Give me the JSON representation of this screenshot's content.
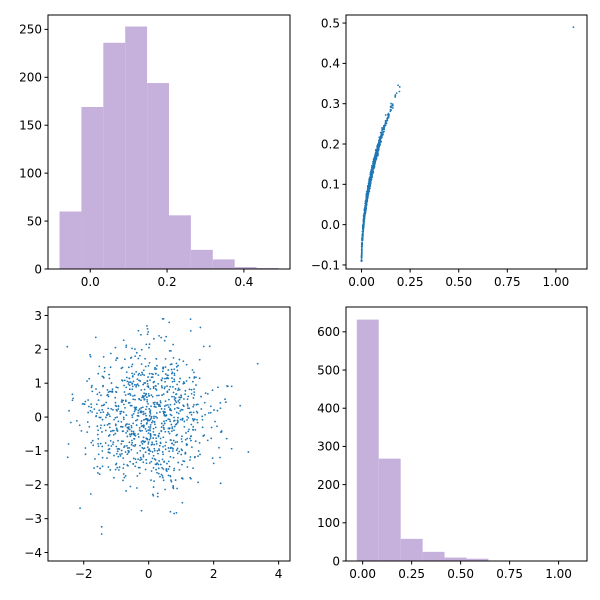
{
  "figure": {
    "background": "#ffffff"
  },
  "chart_data": [
    {
      "type": "bar",
      "subtype": "histogram",
      "panel": "top-left",
      "color": "#c6b0dc",
      "bin_edges": [
        -0.08,
        -0.023,
        0.034,
        0.091,
        0.148,
        0.205,
        0.262,
        0.319,
        0.376,
        0.433,
        0.49
      ],
      "values": [
        60,
        169,
        236,
        253,
        194,
        56,
        20,
        10,
        2,
        1
      ],
      "xlim": [
        -0.11,
        0.52
      ],
      "ylim": [
        0,
        265
      ],
      "x_ticks": [
        0.0,
        0.2,
        0.4
      ],
      "x_tick_labels": [
        "0.0",
        "0.2",
        "0.4"
      ],
      "y_ticks": [
        0,
        50,
        100,
        150,
        200,
        250
      ],
      "y_tick_labels": [
        "0",
        "50",
        "100",
        "150",
        "200",
        "250"
      ]
    },
    {
      "type": "scatter",
      "panel": "top-right",
      "color": "#1f77b4",
      "point_count": 1000,
      "relationship": "y = sqrt(x) - 0.1",
      "x_range": [
        -0.02,
        1.09
      ],
      "y_range": [
        -0.09,
        0.49
      ],
      "xlim": [
        -0.08,
        1.16
      ],
      "ylim": [
        -0.11,
        0.52
      ],
      "x_ticks": [
        0.0,
        0.25,
        0.5,
        0.75,
        1.0
      ],
      "x_tick_labels": [
        "0.00",
        "0.25",
        "0.50",
        "0.75",
        "1.00"
      ],
      "y_ticks": [
        -0.1,
        0.0,
        0.1,
        0.2,
        0.3,
        0.4,
        0.5
      ],
      "y_tick_labels": [
        "−0.1",
        "0.0",
        "0.1",
        "0.2",
        "0.3",
        "0.4",
        "0.5"
      ]
    },
    {
      "type": "scatter",
      "panel": "bottom-left",
      "color": "#1f77b4",
      "point_count": 1000,
      "distribution": "bivariate standard normal",
      "x_range": [
        -2.8,
        4.1
      ],
      "y_range": [
        -3.9,
        2.9
      ],
      "xlim": [
        -3.1,
        4.35
      ],
      "ylim": [
        -4.25,
        3.25
      ],
      "x_ticks": [
        -2,
        0,
        2,
        4
      ],
      "x_tick_labels": [
        "−2",
        "0",
        "2",
        "4"
      ],
      "y_ticks": [
        -4,
        -3,
        -2,
        -1,
        0,
        1,
        2,
        3
      ],
      "y_tick_labels": [
        "−4",
        "−3",
        "−2",
        "−1",
        "0",
        "1",
        "2",
        "3"
      ]
    },
    {
      "type": "bar",
      "subtype": "histogram",
      "panel": "bottom-right",
      "color": "#c6b0dc",
      "bin_edges": [
        -0.03,
        0.082,
        0.194,
        0.306,
        0.418,
        0.53,
        0.642,
        0.754,
        0.866,
        0.978,
        1.09
      ],
      "values": [
        632,
        268,
        58,
        24,
        9,
        6,
        1,
        1,
        0,
        1
      ],
      "xlim": [
        -0.085,
        1.145
      ],
      "ylim": [
        0,
        665
      ],
      "x_ticks": [
        0.0,
        0.25,
        0.5,
        0.75,
        1.0
      ],
      "x_tick_labels": [
        "0.00",
        "0.25",
        "0.50",
        "0.75",
        "1.00"
      ],
      "y_ticks": [
        0,
        100,
        200,
        300,
        400,
        500,
        600
      ],
      "y_tick_labels": [
        "0",
        "100",
        "200",
        "300",
        "400",
        "500",
        "600"
      ]
    }
  ]
}
